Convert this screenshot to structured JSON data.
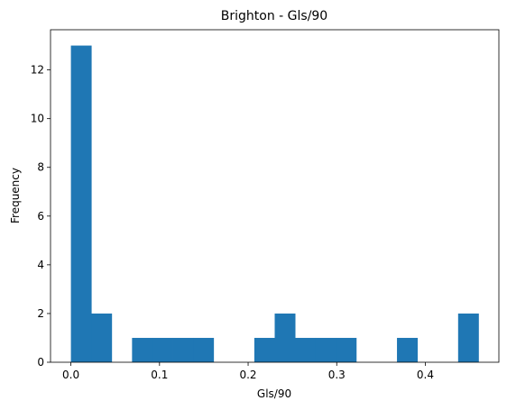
{
  "chart_data": {
    "type": "bar",
    "title": "Brighton - Gls/90",
    "xlabel": "Gls/90",
    "ylabel": "Frequency",
    "xlim": [
      -0.023,
      0.483
    ],
    "ylim": [
      0,
      13.65
    ],
    "x_ticks": [
      0.0,
      0.1,
      0.2,
      0.3,
      0.4
    ],
    "x_tick_labels": [
      "0.0",
      "0.1",
      "0.2",
      "0.3",
      "0.4"
    ],
    "y_ticks": [
      0,
      2,
      4,
      6,
      8,
      10,
      12
    ],
    "y_tick_labels": [
      "0",
      "2",
      "4",
      "6",
      "8",
      "10",
      "12"
    ],
    "bin_edges": [
      0.0,
      0.023,
      0.046,
      0.069,
      0.092,
      0.115,
      0.138,
      0.161,
      0.184,
      0.207,
      0.23,
      0.253,
      0.276,
      0.299,
      0.322,
      0.345,
      0.368,
      0.391,
      0.414,
      0.437,
      0.46
    ],
    "values": [
      13,
      2,
      0,
      1,
      1,
      1,
      1,
      0,
      0,
      1,
      2,
      1,
      1,
      1,
      0,
      0,
      1,
      0,
      0,
      2
    ],
    "bar_color": "#1f77b4",
    "grid": false
  }
}
